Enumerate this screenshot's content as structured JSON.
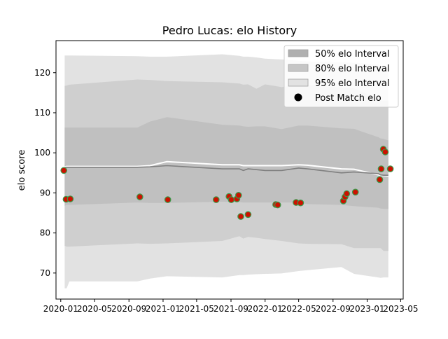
{
  "chart_data": {
    "type": "scatter",
    "title": "Pedro Lucas: elo History",
    "xlabel": "",
    "ylabel": "elo score",
    "xlim": [
      "2019-12-15",
      "2023-05-10"
    ],
    "ylim": [
      63.5,
      128
    ],
    "x_ticks": [
      {
        "date": "2020-01-01",
        "label": "2020-01"
      },
      {
        "date": "2020-05-01",
        "label": "2020-05"
      },
      {
        "date": "2020-09-01",
        "label": "2020-09"
      },
      {
        "date": "2021-01-01",
        "label": "2021-01"
      },
      {
        "date": "2021-05-01",
        "label": "2021-05"
      },
      {
        "date": "2021-09-01",
        "label": "2021-09"
      },
      {
        "date": "2022-01-01",
        "label": "2022-01"
      },
      {
        "date": "2022-05-01",
        "label": "2022-05"
      },
      {
        "date": "2022-09-01",
        "label": "2022-09"
      },
      {
        "date": "2023-01-01",
        "label": "2023-01"
      },
      {
        "date": "2023-05-01",
        "label": "2023-05"
      }
    ],
    "y_ticks": [
      70,
      80,
      90,
      100,
      110,
      120
    ],
    "grid": false,
    "legend_position": "top-right",
    "legend": [
      {
        "label": "50% elo Interval",
        "color": "#b0b0b0",
        "kind": "patch"
      },
      {
        "label": "80% elo Interval",
        "color": "#c6c6c6",
        "kind": "patch"
      },
      {
        "label": "95% elo Interval",
        "color": "#e2e2e2",
        "kind": "patch"
      },
      {
        "label": "Post Match elo",
        "color": "#000000",
        "kind": "marker"
      }
    ],
    "bands": {
      "x": [
        "2020-01-15",
        "2020-01-22",
        "2020-02-01",
        "2020-10-01",
        "2020-11-15",
        "2021-01-15",
        "2021-08-01",
        "2021-10-01",
        "2021-10-15",
        "2021-11-01",
        "2021-12-01",
        "2022-01-01",
        "2022-03-01",
        "2022-05-01",
        "2022-06-01",
        "2022-10-01",
        "2022-11-15",
        "2023-02-10",
        "2023-02-18",
        "2023-03-01",
        "2023-03-18"
      ],
      "p95_upper": [
        124.3,
        124.3,
        124.3,
        124.1,
        124.0,
        124.0,
        124.6,
        124.2,
        124.0,
        124.0,
        123.8,
        123.5,
        123.3,
        123.0,
        122.8,
        122.6,
        122.5,
        122.0,
        121.7,
        121.5,
        121.3
      ],
      "p80_upper": [
        116.7,
        116.8,
        117.0,
        118.3,
        118.2,
        117.9,
        117.6,
        117.3,
        117.0,
        117.1,
        116.0,
        117.1,
        116.4,
        117.0,
        116.9,
        116.3,
        116.1,
        113.5,
        113.0,
        113.0,
        113.0
      ],
      "p50_upper": [
        106.3,
        106.3,
        106.3,
        106.3,
        107.8,
        108.9,
        107.0,
        106.8,
        106.6,
        106.5,
        106.6,
        106.6,
        105.9,
        106.8,
        106.8,
        106.1,
        106.0,
        103.9,
        103.6,
        103.5,
        103.1
      ],
      "p50_lower": [
        86.8,
        87.0,
        87.0,
        87.6,
        87.5,
        87.5,
        87.8,
        87.7,
        87.6,
        87.6,
        87.6,
        87.6,
        87.6,
        87.6,
        87.2,
        87.0,
        86.7,
        86.3,
        86.1,
        86.0,
        86.0
      ],
      "p80_lower": [
        76.8,
        76.6,
        76.6,
        77.4,
        77.3,
        77.4,
        78.0,
        79.2,
        78.6,
        79.0,
        78.8,
        78.5,
        78.0,
        77.4,
        77.3,
        77.2,
        76.2,
        76.2,
        76.2,
        75.5,
        75.5
      ],
      "p95_lower": [
        66.2,
        66.2,
        67.9,
        67.9,
        68.6,
        69.2,
        68.9,
        69.5,
        69.5,
        69.6,
        69.7,
        69.8,
        69.9,
        70.5,
        70.7,
        71.5,
        69.8,
        68.9,
        68.8,
        68.9,
        68.9
      ],
      "median": [
        96.3,
        96.4,
        96.4,
        96.4,
        96.5,
        96.8,
        96.0,
        96.0,
        95.6,
        96.0,
        95.8,
        95.6,
        95.6,
        96.2,
        96.0,
        95.0,
        95.2,
        94.8,
        94.5,
        94.4,
        94.4
      ],
      "mean": [
        96.5,
        96.6,
        96.6,
        96.6,
        96.8,
        97.8,
        97.0,
        97.0,
        96.8,
        96.8,
        96.8,
        96.8,
        96.8,
        97.0,
        96.9,
        96.0,
        95.9,
        94.5,
        94.4,
        94.3,
        94.2
      ]
    },
    "series": [
      {
        "name": "Post Match elo",
        "x": [
          "2020-01-12",
          "2020-01-20",
          "2020-02-04",
          "2020-10-10",
          "2021-01-18",
          "2021-07-10",
          "2021-08-25",
          "2021-09-02",
          "2021-09-22",
          "2021-09-28",
          "2021-10-06",
          "2021-11-01",
          "2022-02-08",
          "2022-02-15",
          "2022-04-22",
          "2022-05-08",
          "2022-10-08",
          "2022-10-14",
          "2022-10-20",
          "2022-11-20",
          "2023-02-15",
          "2023-02-20",
          "2023-02-28",
          "2023-03-07",
          "2023-03-25"
        ],
        "y": [
          95.6,
          88.4,
          88.5,
          89.0,
          88.3,
          88.3,
          89.1,
          88.3,
          88.5,
          89.4,
          84.1,
          84.6,
          87.1,
          87.0,
          87.6,
          87.5,
          88.0,
          89.0,
          89.8,
          90.2,
          93.3,
          96.0,
          100.9,
          100.2,
          96.0
        ]
      }
    ]
  }
}
